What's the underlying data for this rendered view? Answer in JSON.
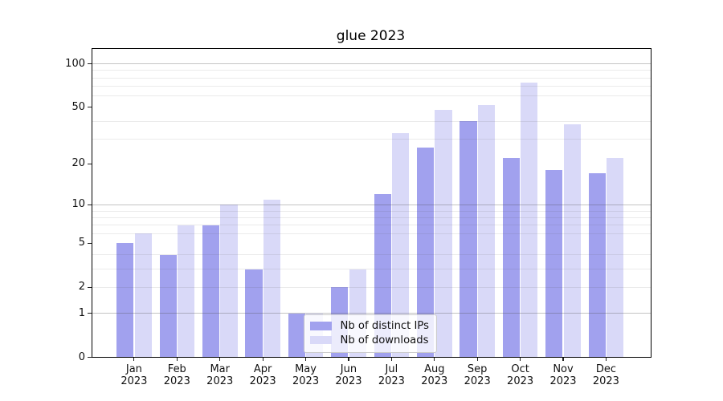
{
  "chart_data": {
    "type": "bar",
    "title": "glue 2023",
    "categories": [
      "Jan",
      "Feb",
      "Mar",
      "Apr",
      "May",
      "Jun",
      "Jul",
      "Aug",
      "Sep",
      "Oct",
      "Nov",
      "Dec"
    ],
    "x_year_label": "2023",
    "series": [
      {
        "name": "Nb of distinct IPs",
        "color": "#a1a1ee",
        "values": [
          5,
          4,
          7,
          3,
          1,
          2,
          12,
          26,
          40,
          22,
          18,
          17
        ]
      },
      {
        "name": "Nb of downloads",
        "color": "#d9d9f8",
        "values": [
          6,
          7,
          10,
          11,
          1,
          3,
          33,
          48,
          52,
          74,
          38,
          22
        ]
      }
    ],
    "y_scale": "log10(1+x)",
    "y_ticks": [
      0,
      1,
      2,
      5,
      10,
      20,
      50,
      100
    ],
    "y_major_gridlines": [
      1,
      10,
      100
    ],
    "y_minor_gridlines": [
      2,
      3,
      4,
      6,
      7,
      8,
      9,
      30,
      40,
      60,
      70,
      80,
      90
    ],
    "ylim": [
      0,
      130
    ],
    "grid": true,
    "legend_position": "inside-bottom-center"
  }
}
